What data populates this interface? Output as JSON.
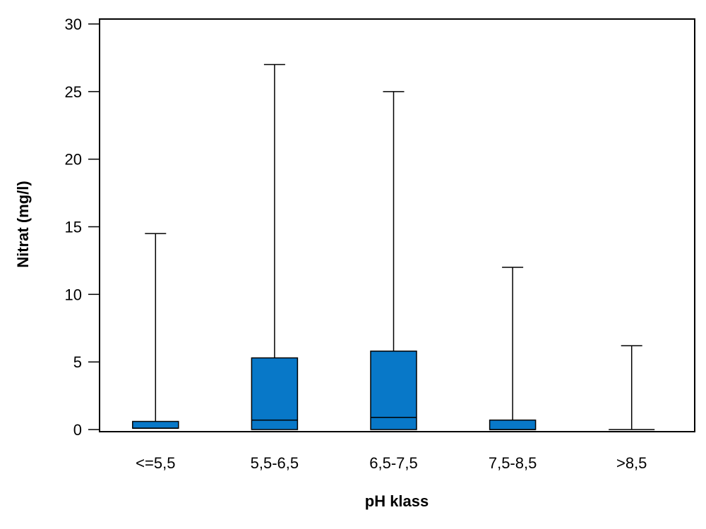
{
  "chart_data": {
    "type": "boxplot",
    "title": "",
    "xlabel": "pH klass",
    "ylabel": "Nitrat (mg/l)",
    "ylim": [
      0,
      30
    ],
    "yticks": [
      0,
      5,
      10,
      15,
      20,
      25,
      30
    ],
    "categories": [
      "<=5,5",
      "5,5-6,5",
      "6,5-7,5",
      "7,5-8,5",
      ">8,5"
    ],
    "boxes": [
      {
        "min": 0,
        "q1": 0.1,
        "median": 0.1,
        "q3": 0.6,
        "max": 14.5
      },
      {
        "min": 0,
        "q1": 0.0,
        "median": 0.7,
        "q3": 5.3,
        "max": 27.0
      },
      {
        "min": 0,
        "q1": 0.0,
        "median": 0.9,
        "q3": 5.8,
        "max": 25.0
      },
      {
        "min": 0,
        "q1": 0.0,
        "median": 0.0,
        "q3": 0.7,
        "max": 12.0
      },
      {
        "min": 0,
        "q1": 0.0,
        "median": 0.0,
        "q3": 0.0,
        "max": 6.2
      }
    ],
    "box_color": "#0878C8",
    "grid": false,
    "legend": "none"
  }
}
